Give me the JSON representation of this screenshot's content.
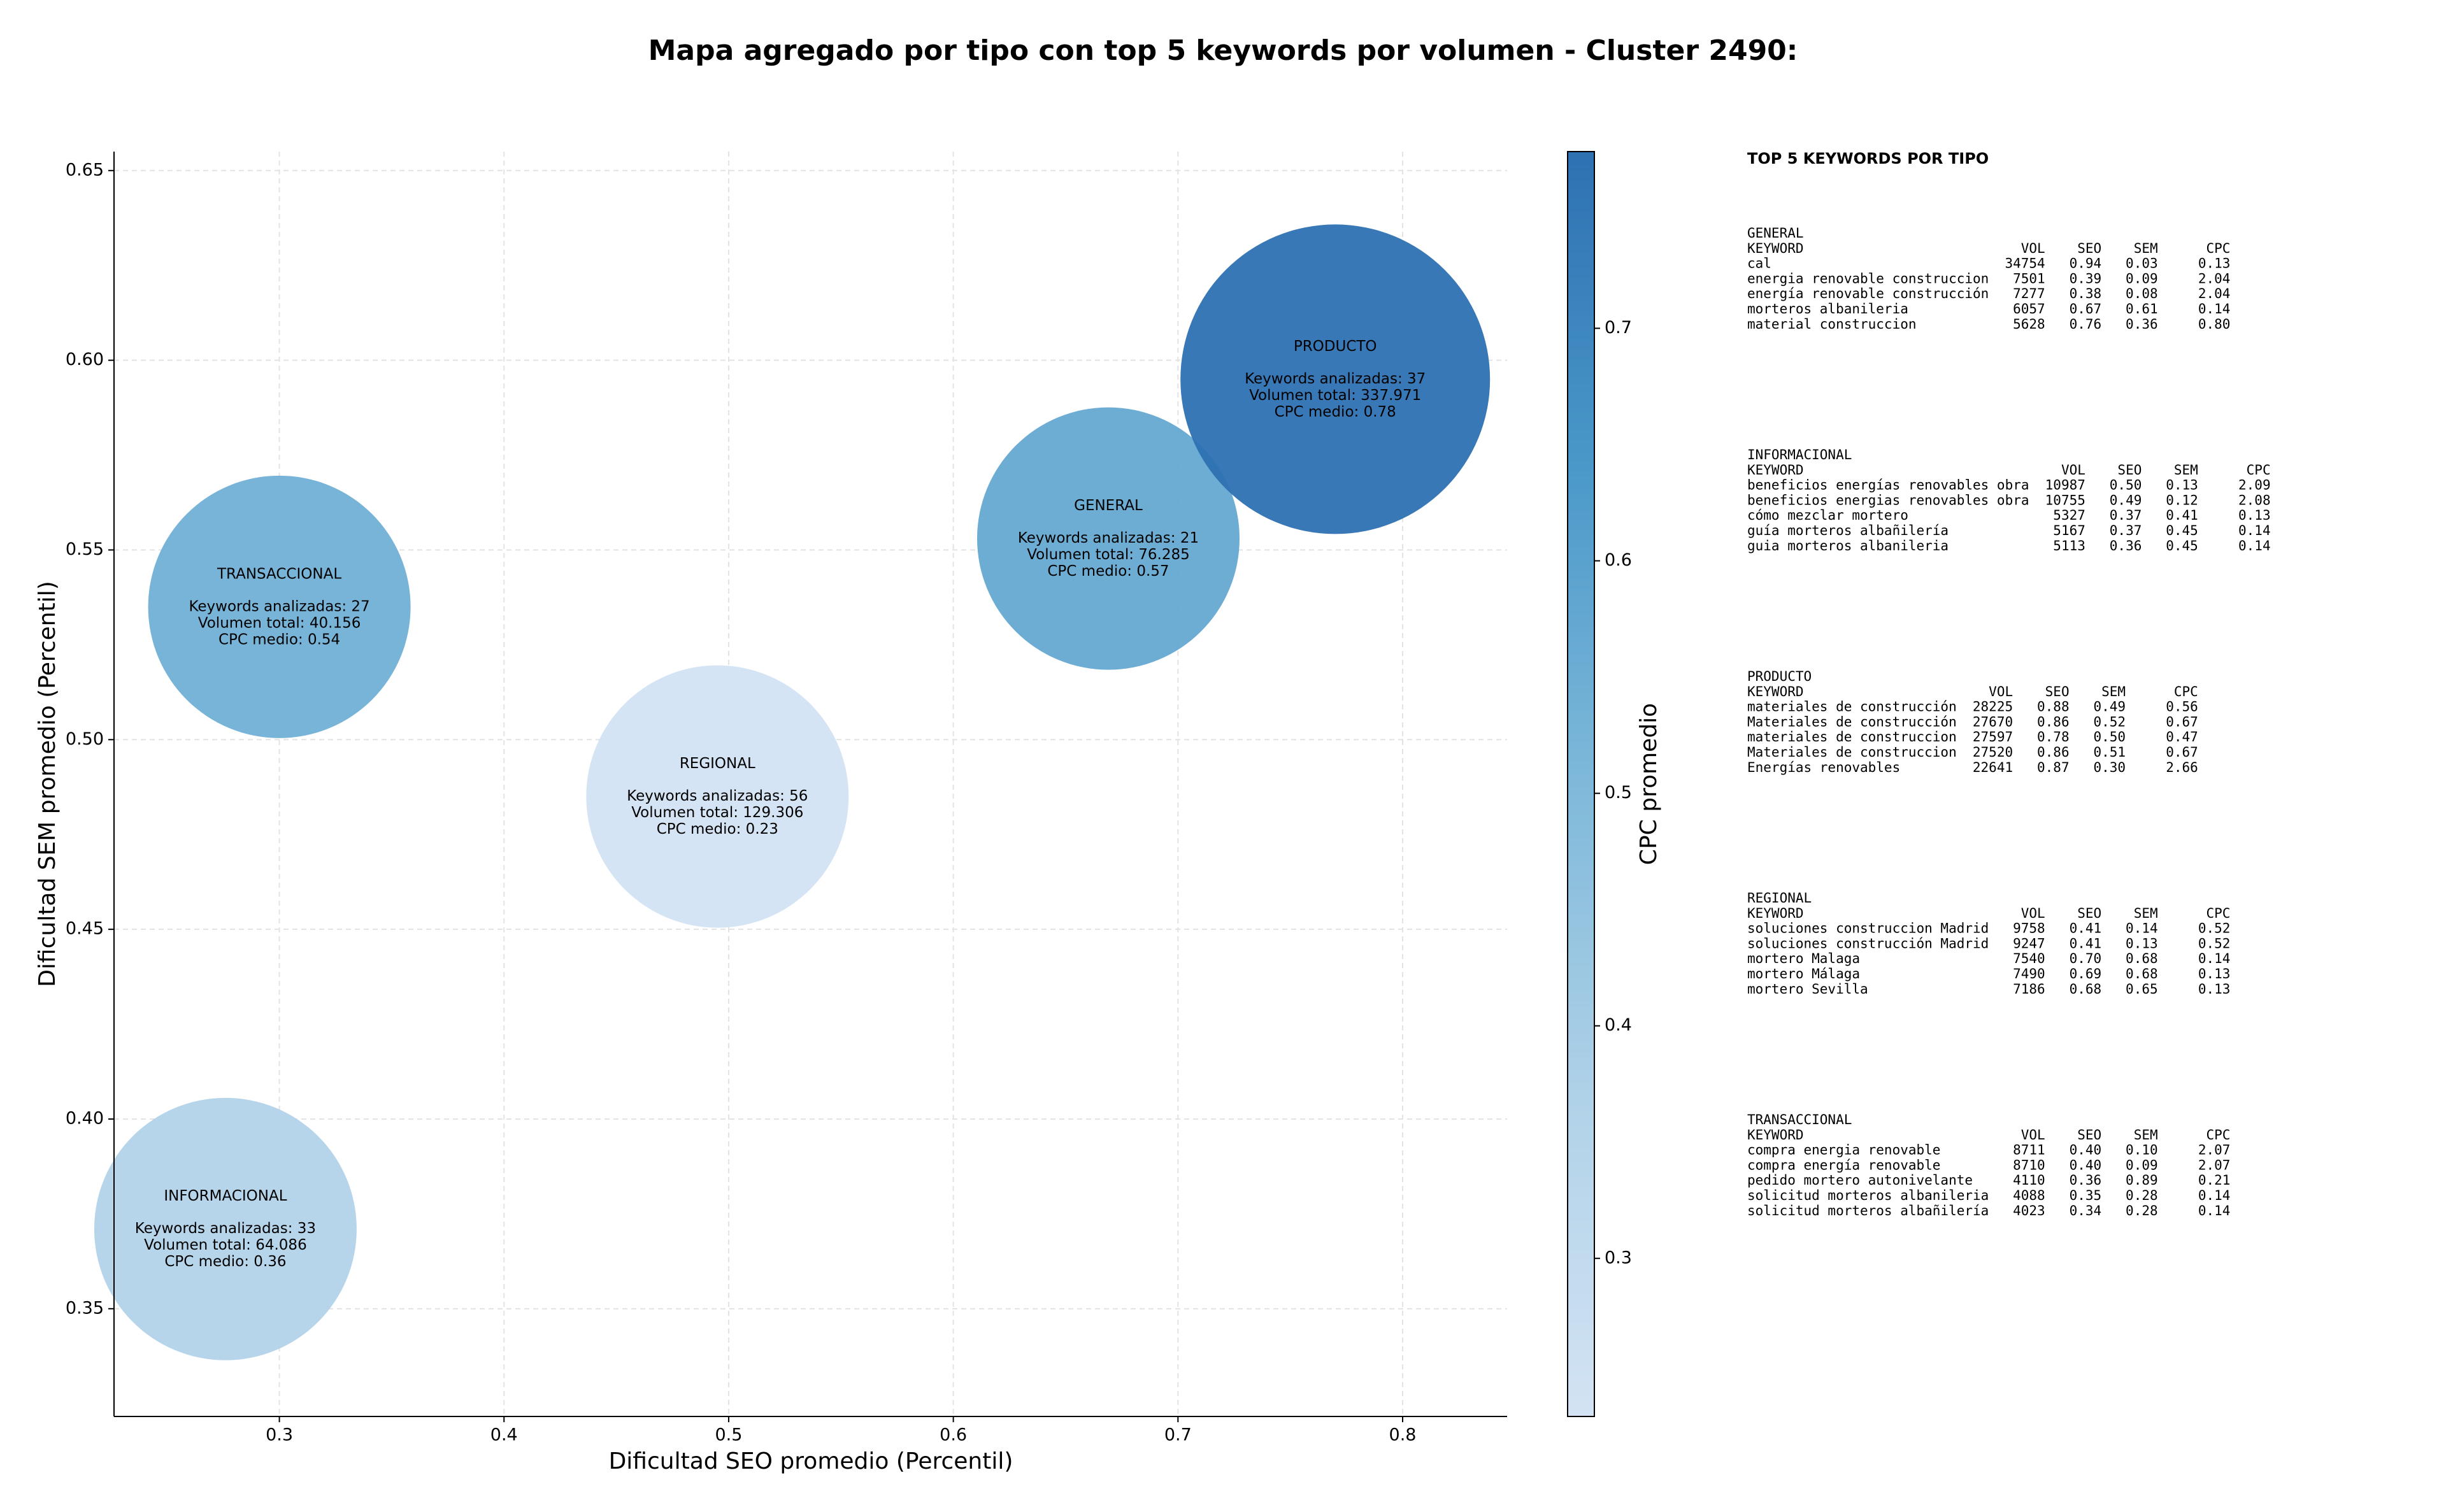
{
  "chart_data": {
    "type": "bubble",
    "title": "Mapa agregado por tipo con top 5 keywords por volumen - Cluster 2490:",
    "xlabel": "Dificultad SEO promedio (Percentil)",
    "ylabel": "Dificultad SEM promedio (Percentil)",
    "categories": [
      "TRANSACCIONAL",
      "INFORMACIONAL",
      "REGIONAL",
      "GENERAL",
      "PRODUCTO"
    ],
    "x": [
      0.3,
      0.276,
      0.495,
      0.669,
      0.77
    ],
    "values": [
      0.535,
      0.371,
      0.485,
      0.553,
      0.595
    ],
    "color_values": [
      0.54,
      0.36,
      0.23,
      0.57,
      0.78
    ],
    "annotations": [
      [
        "Keywords analizadas: 27",
        "Volumen total: 40.156",
        "CPC medio: 0.54"
      ],
      [
        "Keywords analizadas: 33",
        "Volumen total: 64.086",
        "CPC medio: 0.36"
      ],
      [
        "Keywords analizadas: 56",
        "Volumen total: 129.306",
        "CPC medio: 0.23"
      ],
      [
        "Keywords analizadas: 21",
        "Volumen total: 76.285",
        "CPC medio: 0.57"
      ],
      [
        "Keywords analizadas: 37",
        "Volumen total: 337.971",
        "CPC medio: 0.78"
      ]
    ],
    "xlim": [
      0.2264,
      0.8465
    ],
    "xticks": [
      0.3,
      0.4,
      0.5,
      0.6,
      0.7,
      0.8
    ],
    "ylim": [
      0.3216,
      0.655
    ],
    "yticks": [
      0.35,
      {
        "value": 0.4,
        "label": "0.40"
      },
      0.45,
      {
        "value": 0.5,
        "label": "0.50"
      },
      0.55,
      {
        "value": 0.6,
        "label": "0.60"
      },
      0.65
    ],
    "grid": true,
    "colormap": [
      "#d3e3f3",
      "#b0d2e8",
      "#7fb9da",
      "#4a98c9",
      "#2e71b2"
    ],
    "colorbar": {
      "label": "CPC promedio",
      "lim": [
        0.232,
        0.776
      ],
      "ticks": [
        0.3,
        0.4,
        0.5,
        0.6,
        0.7
      ]
    }
  },
  "keyword_panel": {
    "title": "TOP 5 KEYWORDS POR TIPO",
    "sections": [
      {
        "name": "GENERAL",
        "columns": [
          "KEYWORD",
          "VOL",
          "SEO",
          "SEM",
          "CPC"
        ],
        "rows": [
          [
            "cal",
            "34754",
            "0.94",
            "0.03",
            "0.13"
          ],
          [
            "energia renovable construccion",
            "7501",
            "0.39",
            "0.09",
            "2.04"
          ],
          [
            "energía renovable construcción",
            "7277",
            "0.38",
            "0.08",
            "2.04"
          ],
          [
            "morteros albanileria",
            "6057",
            "0.67",
            "0.61",
            "0.14"
          ],
          [
            "material construccion",
            "5628",
            "0.76",
            "0.36",
            "0.80"
          ]
        ]
      },
      {
        "name": "INFORMACIONAL",
        "columns": [
          "KEYWORD",
          "VOL",
          "SEO",
          "SEM",
          "CPC"
        ],
        "rows": [
          [
            "beneficios energías renovables obra",
            "10987",
            "0.50",
            "0.13",
            "2.09"
          ],
          [
            "beneficios energias renovables obra",
            "10755",
            "0.49",
            "0.12",
            "2.08"
          ],
          [
            "cómo mezclar mortero",
            "5327",
            "0.37",
            "0.41",
            "0.13"
          ],
          [
            "guía morteros albañilería",
            "5167",
            "0.37",
            "0.45",
            "0.14"
          ],
          [
            "guia morteros albanileria",
            "5113",
            "0.36",
            "0.45",
            "0.14"
          ]
        ]
      },
      {
        "name": "PRODUCTO",
        "columns": [
          "KEYWORD",
          "VOL",
          "SEO",
          "SEM",
          "CPC"
        ],
        "rows": [
          [
            "materiales de construcción",
            "28225",
            "0.88",
            "0.49",
            "0.56"
          ],
          [
            "Materiales de construcción",
            "27670",
            "0.86",
            "0.52",
            "0.67"
          ],
          [
            "materiales de construccion",
            "27597",
            "0.78",
            "0.50",
            "0.47"
          ],
          [
            "Materiales de construccion",
            "27520",
            "0.86",
            "0.51",
            "0.67"
          ],
          [
            "Energías renovables",
            "22641",
            "0.87",
            "0.30",
            "2.66"
          ]
        ]
      },
      {
        "name": "REGIONAL",
        "columns": [
          "KEYWORD",
          "VOL",
          "SEO",
          "SEM",
          "CPC"
        ],
        "rows": [
          [
            "soluciones construccion Madrid",
            "9758",
            "0.41",
            "0.14",
            "0.52"
          ],
          [
            "soluciones construcción Madrid",
            "9247",
            "0.41",
            "0.13",
            "0.52"
          ],
          [
            "mortero Malaga",
            "7540",
            "0.70",
            "0.68",
            "0.14"
          ],
          [
            "mortero Málaga",
            "7490",
            "0.69",
            "0.68",
            "0.13"
          ],
          [
            "mortero Sevilla",
            "7186",
            "0.68",
            "0.65",
            "0.13"
          ]
        ]
      },
      {
        "name": "TRANSACCIONAL",
        "columns": [
          "KEYWORD",
          "VOL",
          "SEO",
          "SEM",
          "CPC"
        ],
        "rows": [
          [
            "compra energia renovable",
            "8711",
            "0.40",
            "0.10",
            "2.07"
          ],
          [
            "compra energía renovable",
            "8710",
            "0.40",
            "0.09",
            "2.07"
          ],
          [
            "pedido mortero autonivelante",
            "4110",
            "0.36",
            "0.89",
            "0.21"
          ],
          [
            "solicitud morteros albanileria",
            "4088",
            "0.35",
            "0.28",
            "0.14"
          ],
          [
            "solicitud morteros albañilería",
            "4023",
            "0.34",
            "0.28",
            "0.14"
          ]
        ]
      }
    ]
  }
}
